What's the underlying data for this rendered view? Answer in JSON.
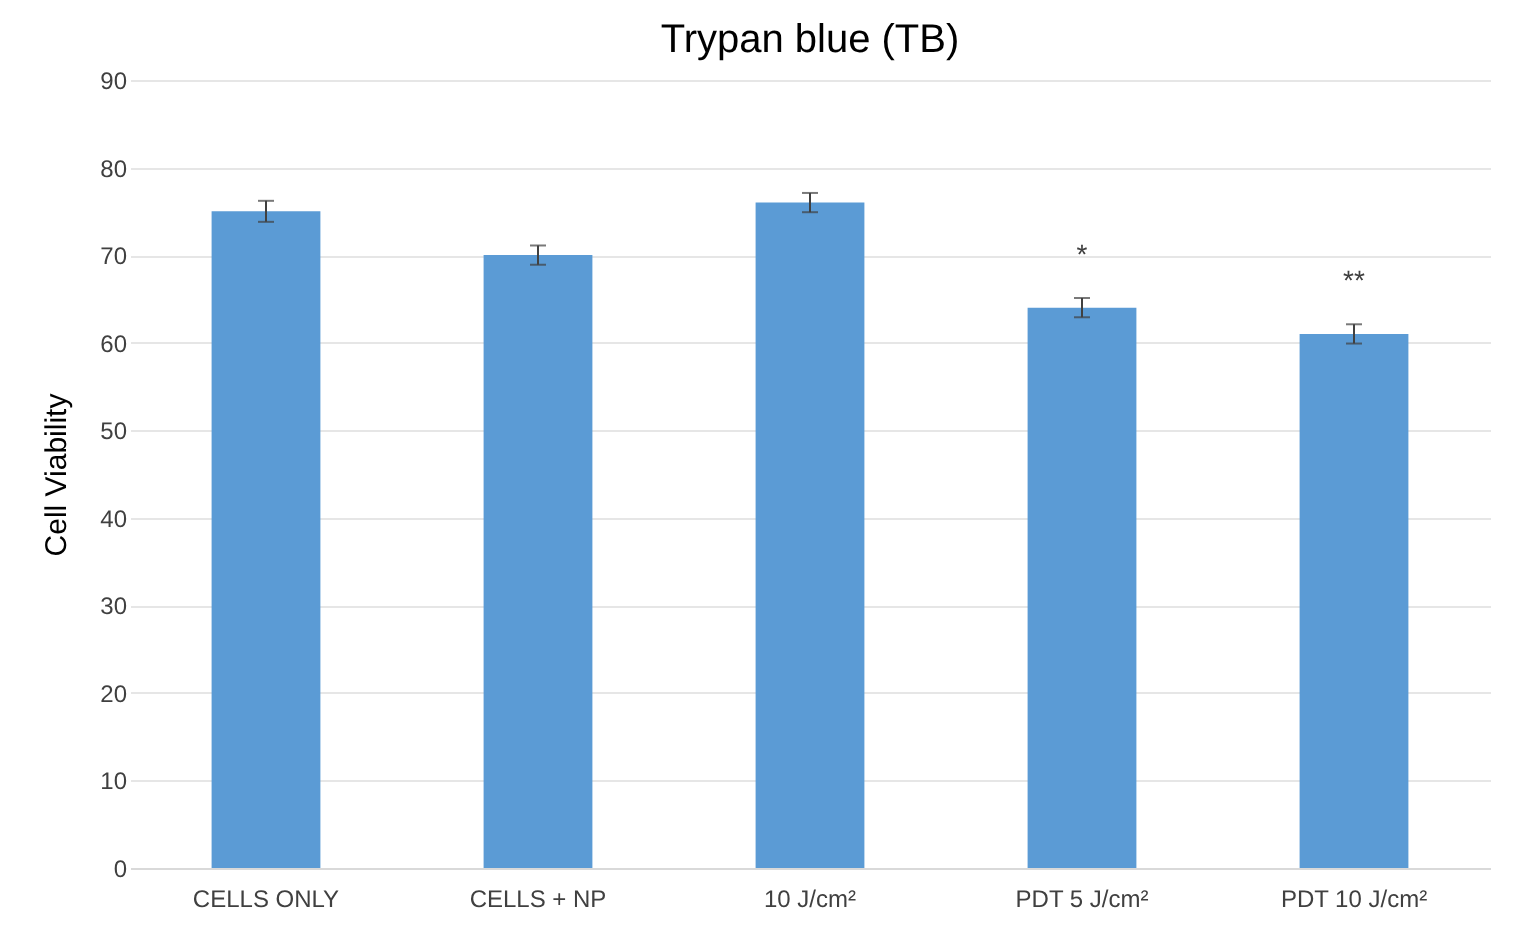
{
  "chart_data": {
    "type": "bar",
    "title": "Trypan blue (TB)",
    "ylabel": "Cell Viability",
    "categories": [
      "CELLS ONLY",
      "CELLS + NP",
      "10 J/cm²",
      "PDT 5 J/cm²",
      "PDT 10 J/cm²"
    ],
    "values": [
      75,
      70,
      76,
      64,
      61
    ],
    "errors": [
      1.2,
      1.1,
      1.1,
      1.1,
      1.1
    ],
    "color": "#5b9bd5",
    "ylim": [
      0,
      90
    ],
    "yticks": [
      0,
      10,
      20,
      30,
      40,
      50,
      60,
      70,
      80,
      90
    ],
    "grid": "y",
    "value_labels": [
      null,
      null,
      null,
      "*",
      "**"
    ]
  }
}
